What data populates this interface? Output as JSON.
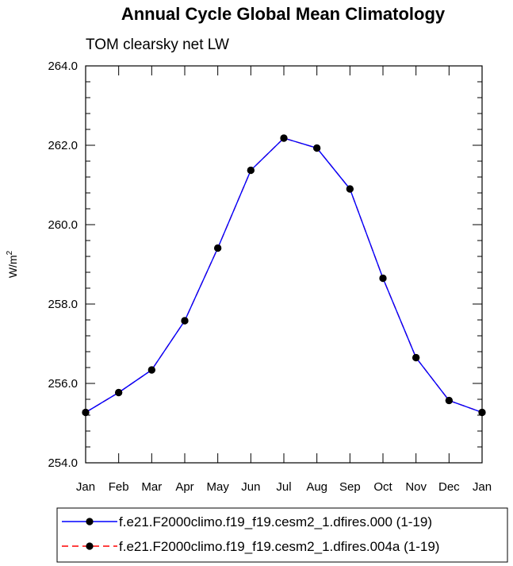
{
  "chart_data": {
    "type": "line",
    "title": "Annual Cycle Global Mean Climatology",
    "subtitle": "TOM clearsky net LW",
    "ylabel": "W/m",
    "ylabel_sup": "2",
    "xlabel": "",
    "categories": [
      "Jan",
      "Feb",
      "Mar",
      "Apr",
      "May",
      "Jun",
      "Jul",
      "Aug",
      "Sep",
      "Oct",
      "Nov",
      "Dec",
      "Jan"
    ],
    "ylim": [
      254.0,
      264.0
    ],
    "yticks": [
      "254.0",
      "256.0",
      "258.0",
      "260.0",
      "262.0",
      "264.0"
    ],
    "grid": false,
    "legend_position": "bottom",
    "series": [
      {
        "name": "f.e21.F2000climo.f19_f19.cesm2_1.dfires.000 (1-19)",
        "color": "#0000ff",
        "style": "solid",
        "values": [
          255.27,
          255.77,
          256.34,
          257.58,
          259.41,
          261.37,
          262.18,
          261.93,
          260.9,
          258.65,
          256.65,
          255.57,
          255.27
        ]
      },
      {
        "name": "f.e21.F2000climo.f19_f19.cesm2_1.dfires.004a (1-19)",
        "color": "#ff0000",
        "style": "dashed",
        "values": [
          255.27,
          255.77,
          256.34,
          257.58,
          259.41,
          261.37,
          262.18,
          261.93,
          260.9,
          258.65,
          256.65,
          255.57,
          255.27
        ]
      }
    ]
  }
}
